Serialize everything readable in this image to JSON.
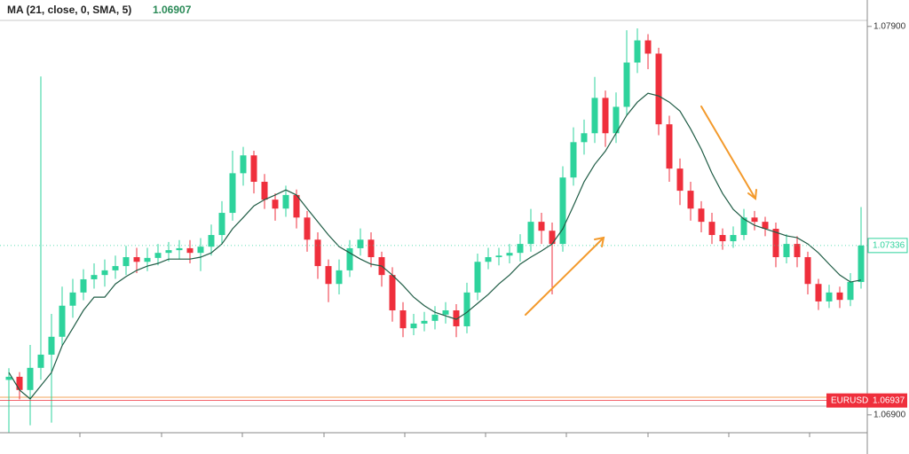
{
  "chart_data": {
    "type": "candlestick",
    "indicator": {
      "label": "MA (21, close, 0, SMA, 5)",
      "value": 1.06907
    },
    "ylim": [
      1.06854,
      1.07968
    ],
    "yticks": [
      {
        "value": 1.079,
        "label": "1.07900"
      },
      {
        "value": 1.069,
        "label": "1.06900"
      }
    ],
    "up_color": "#2ed39c",
    "down_color": "#ef2f3c",
    "open": [
      1.0699,
      1.06998,
      1.06964,
      1.07021,
      1.07055,
      1.07101,
      1.07181,
      1.07215,
      1.07249,
      1.0726,
      1.07272,
      1.07283,
      1.07306,
      1.07294,
      1.07304,
      1.07317,
      1.07324,
      1.07329,
      1.07317,
      1.07333,
      1.07363,
      1.0742,
      1.07522,
      1.07568,
      1.075,
      1.07454,
      1.07431,
      1.07466,
      1.07408,
      1.07351,
      1.07283,
      1.07237,
      1.07272,
      1.07329,
      1.07351,
      1.07306,
      1.0726,
      1.07169,
      1.07123,
      1.07135,
      1.07142,
      1.07158,
      1.07169,
      1.07128,
      1.07215,
      1.07294,
      1.07306,
      1.0731,
      1.07317,
      1.0734,
      1.07397,
      1.07374,
      1.0734,
      1.07511,
      1.07602,
      1.07625,
      1.07716,
      1.07625,
      1.07693,
      1.07807,
      1.07864,
      1.0783,
      1.07648,
      1.07534,
      1.07477,
      1.07431,
      1.07397,
      1.07363,
      1.07347,
      1.07363,
      1.07408,
      1.07397,
      1.07379,
      1.07306,
      1.0734,
      1.07306,
      1.07237,
      1.07192,
      1.07215,
      1.07196,
      1.07242
    ],
    "high": [
      1.0702,
      1.0701,
      1.0708,
      1.07771,
      1.0716,
      1.0723,
      1.0725,
      1.07275,
      1.0729,
      1.073,
      1.0731,
      1.07335,
      1.0733,
      1.0733,
      1.0734,
      1.07345,
      1.0735,
      1.0735,
      1.07355,
      1.0739,
      1.0745,
      1.0758,
      1.0759,
      1.0758,
      1.0752,
      1.0747,
      1.0749,
      1.0748,
      1.07425,
      1.0737,
      1.073,
      1.073,
      1.0735,
      1.0738,
      1.0737,
      1.0732,
      1.0728,
      1.0719,
      1.0716,
      1.07165,
      1.0718,
      1.0719,
      1.07185,
      1.0724,
      1.07315,
      1.0733,
      1.0733,
      1.0734,
      1.07365,
      1.0743,
      1.0742,
      1.07395,
      1.0754,
      1.0764,
      1.0766,
      1.0777,
      1.07735,
      1.0773,
      1.0789,
      1.07895,
      1.0788,
      1.07845,
      1.0767,
      1.0756,
      1.075,
      1.0745,
      1.0742,
      1.0738,
      1.07385,
      1.0743,
      1.07425,
      1.0741,
      1.07395,
      1.07365,
      1.0736,
      1.0732,
      1.0725,
      1.07235,
      1.0723,
      1.07265,
      1.07435
    ],
    "low": [
      1.06855,
      1.0694,
      1.06873,
      1.0699,
      1.0688,
      1.0708,
      1.0715,
      1.07195,
      1.07225,
      1.0723,
      1.0725,
      1.0726,
      1.07265,
      1.0727,
      1.07285,
      1.07295,
      1.073,
      1.0729,
      1.0727,
      1.0731,
      1.0734,
      1.074,
      1.0749,
      1.0747,
      1.0743,
      1.074,
      1.0741,
      1.0738,
      1.0732,
      1.0725,
      1.0719,
      1.0721,
      1.07255,
      1.0731,
      1.0728,
      1.0723,
      1.0714,
      1.071,
      1.07105,
      1.07115,
      1.0712,
      1.07135,
      1.071,
      1.0711,
      1.07195,
      1.07275,
      1.07285,
      1.0729,
      1.07295,
      1.0732,
      1.0734,
      1.0721,
      1.0732,
      1.0749,
      1.0757,
      1.076,
      1.0759,
      1.076,
      1.0767,
      1.0778,
      1.0779,
      1.0762,
      1.075,
      1.0744,
      1.074,
      1.0737,
      1.0734,
      1.07325,
      1.0733,
      1.0735,
      1.07375,
      1.0736,
      1.0728,
      1.0729,
      1.0728,
      1.0721,
      1.0717,
      1.07175,
      1.07175,
      1.0718,
      1.07225
    ],
    "close": [
      1.06998,
      1.06964,
      1.07021,
      1.07055,
      1.07101,
      1.07181,
      1.07215,
      1.07249,
      1.0726,
      1.07272,
      1.07283,
      1.07306,
      1.07294,
      1.07304,
      1.07317,
      1.07324,
      1.07329,
      1.07317,
      1.07333,
      1.07363,
      1.0742,
      1.07522,
      1.07568,
      1.075,
      1.07454,
      1.07431,
      1.07466,
      1.07408,
      1.07351,
      1.07283,
      1.07237,
      1.07272,
      1.07329,
      1.07351,
      1.07306,
      1.0726,
      1.07169,
      1.07123,
      1.07135,
      1.07142,
      1.07158,
      1.07169,
      1.07128,
      1.07215,
      1.07294,
      1.07306,
      1.0731,
      1.07317,
      1.0734,
      1.07397,
      1.07374,
      1.0734,
      1.07511,
      1.07602,
      1.07625,
      1.07716,
      1.07625,
      1.07693,
      1.07807,
      1.07864,
      1.0783,
      1.07648,
      1.07534,
      1.07477,
      1.07431,
      1.07397,
      1.07363,
      1.07347,
      1.07363,
      1.07408,
      1.07397,
      1.07379,
      1.07306,
      1.0734,
      1.07306,
      1.07237,
      1.07192,
      1.07215,
      1.07196,
      1.07242,
      1.07336
    ],
    "ma": {
      "color": "#1f5c45",
      "values": [
        1.07009,
        1.06964,
        1.06941,
        1.06975,
        1.07009,
        1.07078,
        1.07123,
        1.07169,
        1.07203,
        1.07203,
        1.07237,
        1.07256,
        1.07272,
        1.07283,
        1.0729,
        1.07301,
        1.07301,
        1.07301,
        1.07306,
        1.07317,
        1.0734,
        1.07379,
        1.07408,
        1.07438,
        1.07454,
        1.07466,
        1.07479,
        1.07466,
        1.07431,
        1.07397,
        1.07363,
        1.07333,
        1.07317,
        1.07301,
        1.07288,
        1.07283,
        1.0726,
        1.07233,
        1.07203,
        1.07181,
        1.07164,
        1.07155,
        1.07146,
        1.07164,
        1.07187,
        1.0721,
        1.07237,
        1.0726,
        1.07288,
        1.07306,
        1.07322,
        1.0734,
        1.07379,
        1.07438,
        1.075,
        1.07545,
        1.07579,
        1.07625,
        1.07671,
        1.07705,
        1.07728,
        1.07721,
        1.07705,
        1.07682,
        1.07636,
        1.07584,
        1.07522,
        1.0747,
        1.07429,
        1.07404,
        1.07388,
        1.07379,
        1.0737,
        1.07361,
        1.07356,
        1.0734,
        1.07317,
        1.07288,
        1.0726,
        1.07242,
        1.07247
      ]
    },
    "last_price": 1.07336,
    "symbol_price": {
      "symbol": "EURUSD",
      "value": 1.06937
    }
  }
}
